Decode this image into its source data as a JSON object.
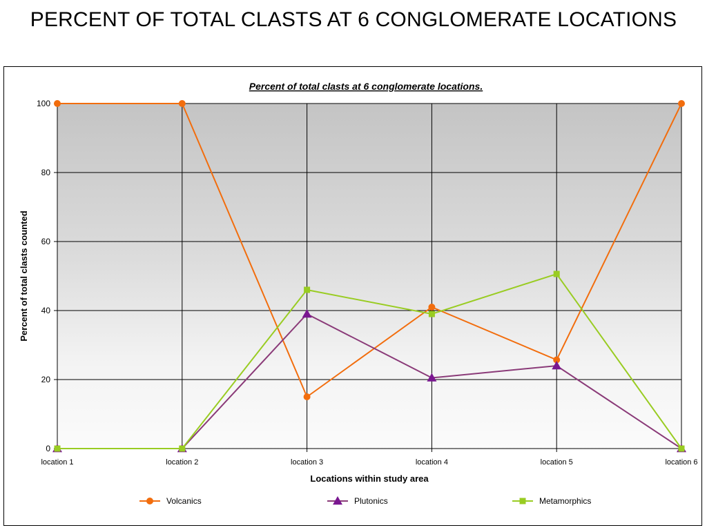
{
  "page": {
    "title": "PERCENT OF TOTAL CLASTS AT 6 CONGLOMERATE LOCATIONS"
  },
  "chart_data": {
    "type": "line",
    "title": "Percent of total clasts at 6 conglomerate locations.",
    "xlabel": "Locations within study area",
    "ylabel": "Percent of total clasts counted",
    "categories": [
      "location 1",
      "location 2",
      "location 3",
      "location 4",
      "location 5",
      "location 6"
    ],
    "ylim": [
      0,
      100
    ],
    "yticks": [
      0,
      20,
      40,
      60,
      80,
      100
    ],
    "grid": true,
    "legend": "bottom",
    "series": [
      {
        "name": "Volcanics",
        "color": "#f26d0d",
        "marker": "circle",
        "values": [
          100,
          100,
          15,
          41,
          25.7,
          100
        ]
      },
      {
        "name": "Plutonics",
        "color": "#8a3a78",
        "marker_color": "#7a1790",
        "marker": "triangle",
        "values": [
          0,
          0,
          39,
          20.5,
          24,
          0
        ]
      },
      {
        "name": "Metamorphics",
        "color": "#99cc22",
        "marker": "square",
        "values": [
          0,
          0,
          46,
          39,
          50.6,
          0
        ]
      }
    ]
  }
}
